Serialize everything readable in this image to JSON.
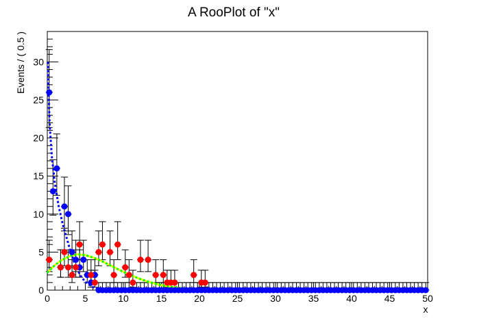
{
  "chart_data": {
    "type": "scatter",
    "title": "A RooPlot of \"x\"",
    "xlabel": "x",
    "ylabel": "Events / ( 0.5 )",
    "xlim": [
      0,
      50
    ],
    "ylim": [
      0,
      34
    ],
    "xticks": [
      "0",
      "5",
      "10",
      "15",
      "20",
      "25",
      "30",
      "35",
      "40",
      "45",
      "50"
    ],
    "yticks": [
      "0",
      "5",
      "10",
      "15",
      "20",
      "25",
      "30"
    ],
    "grid": false,
    "series": [
      {
        "kind": "points",
        "color": "#0000ff",
        "x": [
          0.25,
          0.75,
          1.25,
          1.75,
          2.25,
          2.75,
          3.25,
          3.75,
          4.25,
          4.75,
          5.25,
          5.75,
          6.25,
          6.75,
          7.25,
          7.75,
          8.25,
          8.75,
          9.25,
          9.75,
          10.25,
          10.75,
          11.25,
          11.75,
          12.25,
          12.75,
          13.25,
          13.75,
          14.25,
          14.75,
          15.25,
          15.75,
          16.25,
          16.75,
          17.25,
          17.75,
          18.25,
          18.75,
          19.25,
          19.75,
          20.25,
          20.75,
          21.25,
          21.75,
          22.25,
          22.75,
          23.25,
          23.75,
          24.25,
          24.75,
          25.25,
          25.75,
          26.25,
          26.75,
          27.25,
          27.75,
          28.25,
          28.75,
          29.25,
          29.75,
          30.25,
          30.75,
          31.25,
          31.75,
          32.25,
          32.75,
          33.25,
          33.75,
          34.25,
          34.75,
          35.25,
          35.75,
          36.25,
          36.75,
          37.25,
          37.75,
          38.25,
          38.75,
          39.25,
          39.75,
          40.25,
          40.75,
          41.25,
          41.75,
          42.25,
          42.75,
          43.25,
          43.75,
          44.25,
          44.75,
          45.25,
          45.75,
          46.25,
          46.75,
          47.25,
          47.75,
          48.25,
          48.75,
          49.25,
          49.75
        ],
        "y": [
          26,
          13,
          16,
          3,
          11,
          10,
          5,
          4,
          3,
          4,
          2,
          1,
          2,
          0,
          0,
          0,
          0,
          0,
          0,
          0,
          0,
          0,
          0,
          0,
          0,
          0,
          0,
          0,
          0,
          0,
          0,
          0,
          0,
          0,
          0,
          0,
          0,
          0,
          0,
          0,
          0,
          0,
          0,
          0,
          0,
          0,
          0,
          0,
          0,
          0,
          0,
          0,
          0,
          0,
          0,
          0,
          0,
          0,
          0,
          0,
          0,
          0,
          0,
          0,
          0,
          0,
          0,
          0,
          0,
          0,
          0,
          0,
          0,
          0,
          0,
          0,
          0,
          0,
          0,
          0,
          0,
          0,
          0,
          0,
          0,
          0,
          0,
          0,
          0,
          0,
          0,
          0,
          0,
          0,
          0,
          0,
          0,
          0,
          0,
          0
        ]
      },
      {
        "kind": "points",
        "color": "#ff0000",
        "x": [
          0.25,
          1.75,
          2.25,
          2.75,
          3.25,
          3.75,
          4.25,
          5.75,
          6.25,
          6.75,
          7.25,
          8.25,
          8.75,
          9.25,
          10.25,
          10.75,
          11.25,
          12.25,
          13.25,
          14.25,
          15.25,
          15.75,
          16.25,
          16.75,
          19.25,
          20.25,
          20.75
        ],
        "y": [
          4,
          3,
          5,
          3,
          2,
          3,
          6,
          2,
          1,
          5,
          6,
          5,
          2,
          6,
          3,
          2,
          1,
          4,
          4,
          2,
          2,
          1,
          1,
          1,
          2,
          1,
          1
        ]
      },
      {
        "kind": "curve",
        "style": "dashed",
        "color": "#0000ff",
        "x": [
          0.05,
          0.3,
          0.6,
          1.0,
          1.5,
          2.0,
          2.5,
          3.0,
          3.5,
          4.0,
          4.5,
          5.0,
          5.5,
          6.0,
          6.5,
          7.0,
          8.0,
          10.0,
          15.0,
          20.0,
          30.0,
          50.0
        ],
        "y": [
          30,
          22,
          17.5,
          14,
          11,
          8.8,
          7,
          5.3,
          3.8,
          2.6,
          1.7,
          1.1,
          0.7,
          0.4,
          0.2,
          0.1,
          0.03,
          0.0,
          0.0,
          0.0,
          0.0,
          0.0
        ]
      },
      {
        "kind": "curve",
        "style": "solid",
        "color": "#ffff00",
        "x": [
          0,
          1,
          2,
          3,
          4,
          5,
          6,
          7,
          8,
          9,
          10,
          11,
          12,
          13,
          14,
          15,
          16,
          17,
          18,
          19,
          20,
          21,
          22,
          23,
          24,
          25,
          30,
          40,
          50
        ],
        "y": [
          2.3,
          3.3,
          4.0,
          4.5,
          4.7,
          4.6,
          4.3,
          3.9,
          3.4,
          2.9,
          2.4,
          1.95,
          1.55,
          1.2,
          0.9,
          0.67,
          0.48,
          0.33,
          0.22,
          0.14,
          0.09,
          0.05,
          0.03,
          0.02,
          0.01,
          0.0,
          0.0,
          0.0,
          0.0
        ]
      },
      {
        "kind": "curve",
        "style": "dashed",
        "color": "#00ff00",
        "x": [
          0,
          1,
          2,
          3,
          4,
          5,
          6,
          7,
          8,
          9,
          10,
          11,
          12,
          13,
          14,
          15,
          16,
          17,
          18,
          19,
          20,
          21,
          22,
          23,
          24,
          25,
          30,
          40,
          50
        ],
        "y": [
          2.3,
          3.3,
          4.0,
          4.5,
          4.7,
          4.6,
          4.3,
          3.9,
          3.4,
          2.9,
          2.4,
          1.95,
          1.55,
          1.2,
          0.9,
          0.67,
          0.48,
          0.33,
          0.22,
          0.14,
          0.09,
          0.05,
          0.03,
          0.02,
          0.01,
          0.0,
          0.0,
          0.0,
          0.0
        ]
      }
    ]
  }
}
